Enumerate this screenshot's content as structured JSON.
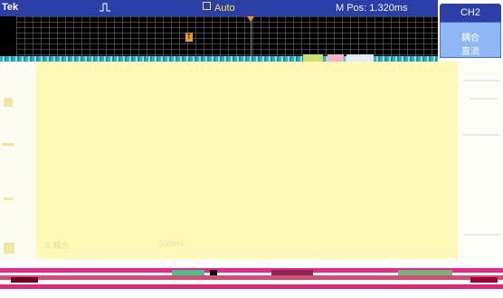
{
  "header": {
    "brand": "Tek",
    "trigger_status": "Auto",
    "horizontal_position": "M Pos: 1.320ms",
    "trigger_status_color": "#f2e33c",
    "bar_color": "#2b3fa6"
  },
  "side_menu": {
    "channel": "CH2",
    "coupling_title": "耦合",
    "coupling_value": "直流",
    "button_color": "#8fb7f3"
  },
  "waveform": {
    "trace_color": "#28b4c6",
    "screen_color": "#fff8b7"
  },
  "readout": {
    "channel_info": "B 耦合",
    "volts_per_div": "500mV"
  }
}
